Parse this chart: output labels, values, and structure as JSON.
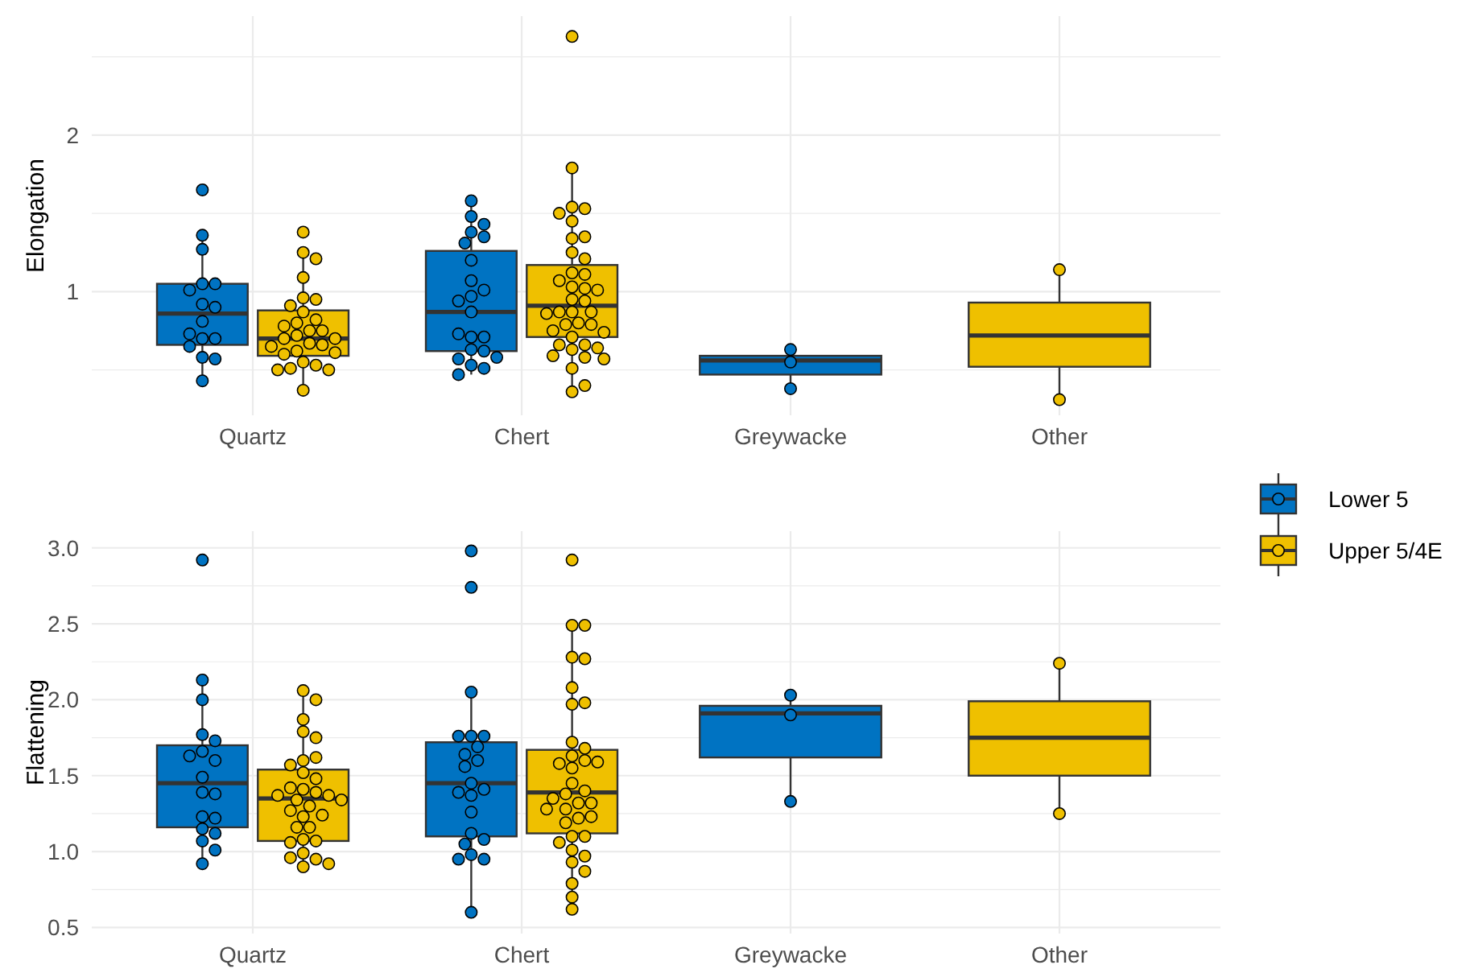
{
  "chart_data": [
    {
      "type": "box",
      "ylabel": "Elongation",
      "categories": [
        "Quartz",
        "Chert",
        "Greywacke",
        "Other"
      ],
      "ylim": [
        0.21,
        2.76
      ],
      "yticks": [
        {
          "value": 0.5,
          "label": null
        },
        1,
        {
          "value": 1.5,
          "label": null
        },
        2,
        {
          "value": 2.5,
          "label": null
        }
      ],
      "grid": true,
      "legend": "right",
      "marker": "circle",
      "series": [
        {
          "name": "Lower 5",
          "color": "#0073c2",
          "boxes": [
            {
              "low": 0.43,
              "q1": 0.66,
              "median": 0.86,
              "q3": 1.05,
              "high": 1.36
            },
            {
              "low": 0.47,
              "q1": 0.62,
              "median": 0.87,
              "q3": 1.26,
              "high": 1.58
            },
            {
              "low": 0.38,
              "q1": 0.47,
              "median": 0.56,
              "q3": 0.59,
              "high": 0.63
            },
            null
          ]
        },
        {
          "name": "Upper 5/4E",
          "color": "#efc000",
          "boxes": [
            {
              "low": 0.37,
              "q1": 0.59,
              "median": 0.7,
              "q3": 0.88,
              "high": 1.25
            },
            {
              "low": 0.36,
              "q1": 0.71,
              "median": 0.91,
              "q3": 1.17,
              "high": 1.79
            },
            null,
            {
              "low": 0.31,
              "q1": 0.52,
              "median": 0.72,
              "q3": 0.93,
              "high": 1.14
            }
          ]
        },
        {
          "type": "scatter",
          "color": "#0073c2",
          "x": [
            "Quartz",
            "Quartz",
            "Quartz",
            "Quartz",
            "Quartz",
            "Quartz",
            "Quartz",
            "Quartz",
            "Quartz",
            "Quartz",
            "Quartz",
            "Quartz",
            "Quartz",
            "Quartz",
            "Quartz",
            "Quartz",
            "Chert",
            "Chert",
            "Chert",
            "Chert",
            "Chert",
            "Chert",
            "Chert",
            "Chert",
            "Chert",
            "Chert",
            "Chert",
            "Chert",
            "Chert",
            "Chert",
            "Chert",
            "Chert",
            "Chert",
            "Chert",
            "Chert",
            "Chert",
            "Chert",
            "Chert",
            "Greywacke",
            "Greywacke",
            "Greywacke"
          ],
          "values": [
            1.65,
            1.36,
            1.27,
            1.05,
            1.05,
            1.01,
            0.92,
            0.9,
            0.81,
            0.7,
            0.7,
            0.73,
            0.65,
            0.58,
            0.57,
            0.43,
            1.58,
            1.48,
            1.43,
            1.38,
            1.35,
            1.31,
            1.2,
            1.07,
            1.01,
            0.97,
            0.94,
            0.87,
            0.71,
            0.71,
            0.73,
            0.63,
            0.62,
            0.57,
            0.58,
            0.53,
            0.51,
            0.47,
            0.63,
            0.55,
            0.38
          ]
        },
        {
          "type": "scatter",
          "color": "#efc000",
          "x": [
            "Quartz",
            "Quartz",
            "Quartz",
            "Quartz",
            "Quartz",
            "Quartz",
            "Quartz",
            "Quartz",
            "Quartz",
            "Quartz",
            "Quartz",
            "Quartz",
            "Quartz",
            "Quartz",
            "Quartz",
            "Quartz",
            "Quartz",
            "Quartz",
            "Quartz",
            "Quartz",
            "Quartz",
            "Quartz",
            "Quartz",
            "Quartz",
            "Quartz",
            "Quartz",
            "Quartz",
            "Quartz",
            "Chert",
            "Chert",
            "Chert",
            "Chert",
            "Chert",
            "Chert",
            "Chert",
            "Chert",
            "Chert",
            "Chert",
            "Chert",
            "Chert",
            "Chert",
            "Chert",
            "Chert",
            "Chert",
            "Chert",
            "Chert",
            "Chert",
            "Chert",
            "Chert",
            "Chert",
            "Chert",
            "Chert",
            "Chert",
            "Chert",
            "Chert",
            "Chert",
            "Chert",
            "Chert",
            "Chert",
            "Chert",
            "Chert",
            "Chert",
            "Chert",
            "Chert",
            "Chert",
            "Chert",
            "Other",
            "Other"
          ],
          "values": [
            1.38,
            1.25,
            1.21,
            1.09,
            0.96,
            0.95,
            0.91,
            0.87,
            0.82,
            0.8,
            0.75,
            0.78,
            0.75,
            0.72,
            0.7,
            0.7,
            0.67,
            0.66,
            0.65,
            0.62,
            0.6,
            0.61,
            0.55,
            0.53,
            0.51,
            0.5,
            0.5,
            0.37,
            2.63,
            1.79,
            1.54,
            1.53,
            1.5,
            1.45,
            1.34,
            1.35,
            1.25,
            1.21,
            1.12,
            1.11,
            1.07,
            1.03,
            1.02,
            1.01,
            0.95,
            0.94,
            0.87,
            0.87,
            0.87,
            0.86,
            0.8,
            0.79,
            0.79,
            0.75,
            0.74,
            0.71,
            0.66,
            0.66,
            0.63,
            0.64,
            0.59,
            0.58,
            0.57,
            0.51,
            0.36,
            0.4,
            1.14,
            0.31
          ]
        }
      ]
    },
    {
      "type": "box",
      "ylabel": "Flattening",
      "categories": [
        "Quartz",
        "Chert",
        "Greywacke",
        "Other"
      ],
      "ylim": [
        0.46,
        3.11
      ],
      "yticks": [
        {
          "value": 0.5,
          "label": "0.5"
        },
        {
          "value": 0.75,
          "label": null
        },
        {
          "value": 1,
          "label": "1.0"
        },
        {
          "value": 1.25,
          "label": null
        },
        {
          "value": 1.5,
          "label": "1.5"
        },
        {
          "value": 1.75,
          "label": null
        },
        {
          "value": 2,
          "label": "2.0"
        },
        {
          "value": 2.25,
          "label": null
        },
        {
          "value": 2.5,
          "label": "2.5"
        },
        {
          "value": 2.75,
          "label": null
        },
        {
          "value": 3,
          "label": "3.0"
        }
      ],
      "grid": true,
      "marker": "circle",
      "series": [
        {
          "name": "Lower 5",
          "color": "#0073c2",
          "boxes": [
            {
              "low": 0.91,
              "q1": 1.16,
              "median": 1.45,
              "q3": 1.7,
              "high": 2.13
            },
            {
              "low": 0.61,
              "q1": 1.1,
              "median": 1.45,
              "q3": 1.72,
              "high": 2.04
            },
            {
              "low": 1.33,
              "q1": 1.62,
              "median": 1.91,
              "q3": 1.96,
              "high": 2.03
            },
            null
          ]
        },
        {
          "name": "Upper 5/4E",
          "color": "#efc000",
          "boxes": [
            {
              "low": 0.91,
              "q1": 1.07,
              "median": 1.35,
              "q3": 1.54,
              "high": 2.05
            },
            {
              "low": 0.62,
              "q1": 1.12,
              "median": 1.39,
              "q3": 1.67,
              "high": 2.49
            },
            null,
            {
              "low": 1.25,
              "q1": 1.5,
              "median": 1.75,
              "q3": 1.99,
              "high": 2.24
            }
          ]
        },
        {
          "type": "scatter",
          "color": "#0073c2",
          "x": [
            "Quartz",
            "Quartz",
            "Quartz",
            "Quartz",
            "Quartz",
            "Quartz",
            "Quartz",
            "Quartz",
            "Quartz",
            "Quartz",
            "Quartz",
            "Quartz",
            "Quartz",
            "Quartz",
            "Quartz",
            "Quartz",
            "Quartz",
            "Quartz",
            "Chert",
            "Chert",
            "Chert",
            "Chert",
            "Chert",
            "Chert",
            "Chert",
            "Chert",
            "Chert",
            "Chert",
            "Chert",
            "Chert",
            "Chert",
            "Chert",
            "Chert",
            "Chert",
            "Chert",
            "Chert",
            "Chert",
            "Chert",
            "Chert",
            "Chert",
            "Greywacke",
            "Greywacke",
            "Greywacke"
          ],
          "values": [
            2.92,
            2.13,
            2.0,
            1.77,
            1.73,
            1.66,
            1.6,
            1.63,
            1.49,
            1.39,
            1.38,
            1.23,
            1.22,
            1.15,
            1.12,
            1.07,
            1.01,
            0.92,
            2.98,
            2.74,
            2.05,
            1.76,
            1.76,
            1.76,
            1.69,
            1.64,
            1.6,
            1.56,
            1.45,
            1.41,
            1.37,
            1.39,
            1.26,
            1.12,
            1.08,
            1.05,
            0.98,
            0.95,
            0.95,
            0.6,
            2.03,
            1.9,
            1.33
          ]
        },
        {
          "type": "scatter",
          "color": "#efc000",
          "x": [
            "Quartz",
            "Quartz",
            "Quartz",
            "Quartz",
            "Quartz",
            "Quartz",
            "Quartz",
            "Quartz",
            "Quartz",
            "Quartz",
            "Quartz",
            "Quartz",
            "Quartz",
            "Quartz",
            "Quartz",
            "Quartz",
            "Quartz",
            "Quartz",
            "Quartz",
            "Quartz",
            "Quartz",
            "Quartz",
            "Quartz",
            "Quartz",
            "Quartz",
            "Quartz",
            "Quartz",
            "Quartz",
            "Quartz",
            "Quartz",
            "Quartz",
            "Chert",
            "Chert",
            "Chert",
            "Chert",
            "Chert",
            "Chert",
            "Chert",
            "Chert",
            "Chert",
            "Chert",
            "Chert",
            "Chert",
            "Chert",
            "Chert",
            "Chert",
            "Chert",
            "Chert",
            "Chert",
            "Chert",
            "Chert",
            "Chert",
            "Chert",
            "Chert",
            "Chert",
            "Chert",
            "Chert",
            "Chert",
            "Chert",
            "Chert",
            "Chert",
            "Chert",
            "Chert",
            "Chert",
            "Chert",
            "Chert",
            "Chert",
            "Other",
            "Other"
          ],
          "values": [
            2.06,
            2.0,
            1.87,
            1.79,
            1.75,
            1.6,
            1.62,
            1.57,
            1.52,
            1.48,
            1.41,
            1.42,
            1.39,
            1.34,
            1.37,
            1.37,
            1.34,
            1.3,
            1.27,
            1.24,
            1.23,
            1.16,
            1.16,
            1.08,
            1.07,
            1.06,
            0.99,
            0.95,
            0.96,
            0.92,
            0.9,
            2.92,
            2.49,
            2.49,
            2.28,
            2.27,
            2.08,
            1.97,
            1.98,
            1.72,
            1.68,
            1.63,
            1.6,
            1.55,
            1.58,
            1.59,
            1.45,
            1.4,
            1.38,
            1.35,
            1.32,
            1.32,
            1.28,
            1.28,
            1.22,
            1.23,
            1.19,
            1.1,
            1.1,
            1.06,
            1.01,
            0.97,
            0.93,
            0.87,
            0.79,
            0.7,
            0.62,
            2.24,
            1.25
          ]
        }
      ]
    }
  ]
}
